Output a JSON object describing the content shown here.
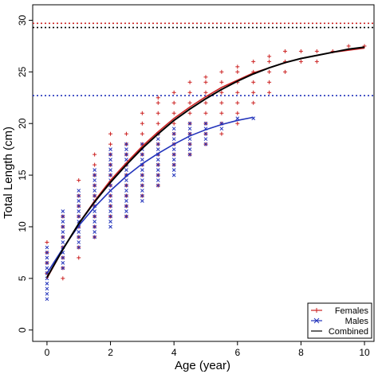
{
  "chart_data": {
    "type": "scatter",
    "title": "",
    "xlabel": "Age (year)",
    "ylabel": "Total Length (cm)",
    "xlim": [
      -0.45,
      10.3
    ],
    "ylim": [
      -1.1,
      31.5
    ],
    "xticks": [
      0,
      2,
      4,
      6,
      8,
      10
    ],
    "yticks": [
      0,
      5,
      10,
      15,
      20,
      25,
      30
    ],
    "grid": false,
    "legend_position": "bottom-right",
    "legend": [
      {
        "label": "Females",
        "marker": "+",
        "color": "#cc2222"
      },
      {
        "label": "Males",
        "marker": "x",
        "color": "#2233bb"
      },
      {
        "label": "Combined",
        "marker": "line",
        "color": "#000000"
      }
    ],
    "reference_lines": [
      {
        "y": 29.7,
        "color": "#cc2222",
        "style": "dotted"
      },
      {
        "y": 29.3,
        "color": "#000000",
        "style": "dotted"
      },
      {
        "y": 22.7,
        "color": "#2233bb",
        "style": "dotted"
      }
    ],
    "series": [
      {
        "name": "Females",
        "color": "#cc2222",
        "marker": "+",
        "points": [
          [
            0,
            5.5
          ],
          [
            0,
            6.5
          ],
          [
            0,
            7.5
          ],
          [
            0,
            8.5
          ],
          [
            0.5,
            5
          ],
          [
            0.5,
            6
          ],
          [
            0.5,
            7
          ],
          [
            0.5,
            8
          ],
          [
            0.5,
            9
          ],
          [
            0.5,
            10
          ],
          [
            0.5,
            11
          ],
          [
            1,
            7
          ],
          [
            1,
            8
          ],
          [
            1,
            9
          ],
          [
            1,
            10
          ],
          [
            1,
            11
          ],
          [
            1,
            12
          ],
          [
            1,
            13
          ],
          [
            1,
            14.5
          ],
          [
            1.5,
            9
          ],
          [
            1.5,
            10
          ],
          [
            1.5,
            11
          ],
          [
            1.5,
            12
          ],
          [
            1.5,
            13
          ],
          [
            1.5,
            14
          ],
          [
            1.5,
            15
          ],
          [
            1.5,
            16
          ],
          [
            1.5,
            17
          ],
          [
            2,
            11
          ],
          [
            2,
            12
          ],
          [
            2,
            13
          ],
          [
            2,
            14
          ],
          [
            2,
            15
          ],
          [
            2,
            16
          ],
          [
            2,
            17
          ],
          [
            2,
            18
          ],
          [
            2,
            19
          ],
          [
            2.5,
            11
          ],
          [
            2.5,
            12
          ],
          [
            2.5,
            13
          ],
          [
            2.5,
            14
          ],
          [
            2.5,
            15
          ],
          [
            2.5,
            16
          ],
          [
            2.5,
            17
          ],
          [
            2.5,
            18
          ],
          [
            2.5,
            19
          ],
          [
            3,
            13
          ],
          [
            3,
            14
          ],
          [
            3,
            15
          ],
          [
            3,
            16
          ],
          [
            3,
            17
          ],
          [
            3,
            18
          ],
          [
            3,
            19
          ],
          [
            3,
            20
          ],
          [
            3,
            21
          ],
          [
            3.5,
            14
          ],
          [
            3.5,
            15
          ],
          [
            3.5,
            16
          ],
          [
            3.5,
            17
          ],
          [
            3.5,
            18
          ],
          [
            3.5,
            19
          ],
          [
            3.5,
            20
          ],
          [
            3.5,
            21
          ],
          [
            3.5,
            22
          ],
          [
            3.5,
            22.5
          ],
          [
            4,
            16
          ],
          [
            4,
            17
          ],
          [
            4,
            18
          ],
          [
            4,
            19
          ],
          [
            4,
            20
          ],
          [
            4,
            21
          ],
          [
            4,
            22
          ],
          [
            4,
            23
          ],
          [
            4.5,
            17
          ],
          [
            4.5,
            18
          ],
          [
            4.5,
            19
          ],
          [
            4.5,
            20
          ],
          [
            4.5,
            21
          ],
          [
            4.5,
            22
          ],
          [
            4.5,
            23
          ],
          [
            4.5,
            24
          ],
          [
            5,
            18
          ],
          [
            5,
            19
          ],
          [
            5,
            20
          ],
          [
            5,
            21
          ],
          [
            5,
            22
          ],
          [
            5,
            23
          ],
          [
            5,
            24
          ],
          [
            5,
            24.5
          ],
          [
            5.5,
            19
          ],
          [
            5.5,
            20
          ],
          [
            5.5,
            21
          ],
          [
            5.5,
            22
          ],
          [
            5.5,
            23
          ],
          [
            5.5,
            24
          ],
          [
            5.5,
            25
          ],
          [
            6,
            20
          ],
          [
            6,
            21
          ],
          [
            6,
            22
          ],
          [
            6,
            23
          ],
          [
            6,
            24
          ],
          [
            6,
            25
          ],
          [
            6,
            25.5
          ],
          [
            6.5,
            22
          ],
          [
            6.5,
            23
          ],
          [
            6.5,
            24
          ],
          [
            6.5,
            25
          ],
          [
            6.5,
            26
          ],
          [
            7,
            23
          ],
          [
            7,
            24
          ],
          [
            7,
            25
          ],
          [
            7,
            26
          ],
          [
            7,
            26.5
          ],
          [
            7.5,
            25
          ],
          [
            7.5,
            26
          ],
          [
            7.5,
            27
          ],
          [
            8,
            26
          ],
          [
            8,
            27
          ],
          [
            8.5,
            26
          ],
          [
            8.5,
            27
          ],
          [
            9,
            27
          ],
          [
            9.5,
            27.5
          ],
          [
            10,
            27.5
          ]
        ]
      },
      {
        "name": "Males",
        "color": "#2233bb",
        "marker": "x",
        "points": [
          [
            0,
            3
          ],
          [
            0,
            3.5
          ],
          [
            0,
            4
          ],
          [
            0,
            4.5
          ],
          [
            0,
            5
          ],
          [
            0,
            5.5
          ],
          [
            0,
            6
          ],
          [
            0,
            6.5
          ],
          [
            0,
            7
          ],
          [
            0,
            7.5
          ],
          [
            0,
            8
          ],
          [
            0.5,
            6
          ],
          [
            0.5,
            6.5
          ],
          [
            0.5,
            7
          ],
          [
            0.5,
            7.5
          ],
          [
            0.5,
            8
          ],
          [
            0.5,
            8.5
          ],
          [
            0.5,
            9
          ],
          [
            0.5,
            9.5
          ],
          [
            0.5,
            10
          ],
          [
            0.5,
            10.5
          ],
          [
            0.5,
            11
          ],
          [
            0.5,
            11.5
          ],
          [
            1,
            8
          ],
          [
            1,
            8.5
          ],
          [
            1,
            9
          ],
          [
            1,
            9.5
          ],
          [
            1,
            10
          ],
          [
            1,
            10.5
          ],
          [
            1,
            11
          ],
          [
            1,
            11.5
          ],
          [
            1,
            12
          ],
          [
            1,
            12.5
          ],
          [
            1,
            13
          ],
          [
            1,
            13.5
          ],
          [
            1.5,
            9
          ],
          [
            1.5,
            9.5
          ],
          [
            1.5,
            10
          ],
          [
            1.5,
            10.5
          ],
          [
            1.5,
            11
          ],
          [
            1.5,
            11.5
          ],
          [
            1.5,
            12
          ],
          [
            1.5,
            12.5
          ],
          [
            1.5,
            13
          ],
          [
            1.5,
            13.5
          ],
          [
            1.5,
            14
          ],
          [
            1.5,
            14.5
          ],
          [
            1.5,
            15
          ],
          [
            1.5,
            15.5
          ],
          [
            2,
            10
          ],
          [
            2,
            10.5
          ],
          [
            2,
            11
          ],
          [
            2,
            11.5
          ],
          [
            2,
            12
          ],
          [
            2,
            12.5
          ],
          [
            2,
            13
          ],
          [
            2,
            13.5
          ],
          [
            2,
            14
          ],
          [
            2,
            14.5
          ],
          [
            2,
            15
          ],
          [
            2,
            15.5
          ],
          [
            2,
            16
          ],
          [
            2,
            16.5
          ],
          [
            2,
            17
          ],
          [
            2,
            17.5
          ],
          [
            2.5,
            11
          ],
          [
            2.5,
            11.5
          ],
          [
            2.5,
            12
          ],
          [
            2.5,
            12.5
          ],
          [
            2.5,
            13
          ],
          [
            2.5,
            13.5
          ],
          [
            2.5,
            14
          ],
          [
            2.5,
            14.5
          ],
          [
            2.5,
            15
          ],
          [
            2.5,
            15.5
          ],
          [
            2.5,
            16
          ],
          [
            2.5,
            16.5
          ],
          [
            2.5,
            17
          ],
          [
            2.5,
            17.5
          ],
          [
            2.5,
            18
          ],
          [
            3,
            12.5
          ],
          [
            3,
            13
          ],
          [
            3,
            13.5
          ],
          [
            3,
            14
          ],
          [
            3,
            14.5
          ],
          [
            3,
            15
          ],
          [
            3,
            15.5
          ],
          [
            3,
            16
          ],
          [
            3,
            16.5
          ],
          [
            3,
            17
          ],
          [
            3,
            17.5
          ],
          [
            3,
            18
          ],
          [
            3.5,
            14
          ],
          [
            3.5,
            14.5
          ],
          [
            3.5,
            15
          ],
          [
            3.5,
            15.5
          ],
          [
            3.5,
            16
          ],
          [
            3.5,
            16.5
          ],
          [
            3.5,
            17
          ],
          [
            3.5,
            17.5
          ],
          [
            3.5,
            18
          ],
          [
            3.5,
            18.5
          ],
          [
            3.5,
            19
          ],
          [
            4,
            15
          ],
          [
            4,
            15.5
          ],
          [
            4,
            16
          ],
          [
            4,
            16.5
          ],
          [
            4,
            17
          ],
          [
            4,
            17.5
          ],
          [
            4,
            18
          ],
          [
            4,
            18.5
          ],
          [
            4,
            19
          ],
          [
            4,
            19.5
          ],
          [
            4.5,
            17
          ],
          [
            4.5,
            17.5
          ],
          [
            4.5,
            18
          ],
          [
            4.5,
            18.5
          ],
          [
            4.5,
            19
          ],
          [
            4.5,
            19.5
          ],
          [
            4.5,
            20
          ],
          [
            5,
            18
          ],
          [
            5,
            18.5
          ],
          [
            5,
            19
          ],
          [
            5,
            19.5
          ],
          [
            5,
            20
          ],
          [
            5.5,
            19.5
          ],
          [
            5.5,
            20
          ],
          [
            6,
            20.5
          ],
          [
            6.5,
            20.5
          ]
        ]
      }
    ],
    "curves": [
      {
        "name": "Females",
        "color": "#cc2222",
        "x": [
          0,
          0.5,
          1,
          1.5,
          2,
          2.5,
          3,
          3.5,
          4,
          4.5,
          5,
          5.5,
          6,
          6.5,
          7,
          7.5,
          8,
          8.5,
          9,
          9.5,
          10
        ],
        "y": [
          5.0,
          7.8,
          10.3,
          12.5,
          14.5,
          16.2,
          17.8,
          19.2,
          20.5,
          21.6,
          22.6,
          23.5,
          24.2,
          24.9,
          25.4,
          25.9,
          26.3,
          26.6,
          26.9,
          27.1,
          27.3
        ]
      },
      {
        "name": "Males",
        "color": "#2233bb",
        "x": [
          0,
          0.5,
          1,
          1.5,
          2,
          2.5,
          3,
          3.5,
          4,
          4.5,
          5,
          5.5,
          6,
          6.5
        ],
        "y": [
          5.5,
          7.9,
          10.1,
          11.9,
          13.5,
          14.9,
          16.1,
          17.1,
          18.0,
          18.8,
          19.4,
          19.9,
          20.3,
          20.6
        ]
      },
      {
        "name": "Combined",
        "color": "#000000",
        "x": [
          0,
          0.5,
          1,
          1.5,
          2,
          2.5,
          3,
          3.5,
          4,
          4.5,
          5,
          5.5,
          6,
          6.5,
          7,
          7.5,
          8,
          8.5,
          9,
          9.5,
          10
        ],
        "y": [
          5.1,
          7.8,
          10.3,
          12.4,
          14.3,
          16.0,
          17.6,
          19.0,
          20.3,
          21.4,
          22.4,
          23.3,
          24.1,
          24.8,
          25.4,
          25.9,
          26.3,
          26.6,
          26.9,
          27.2,
          27.4
        ]
      }
    ]
  }
}
